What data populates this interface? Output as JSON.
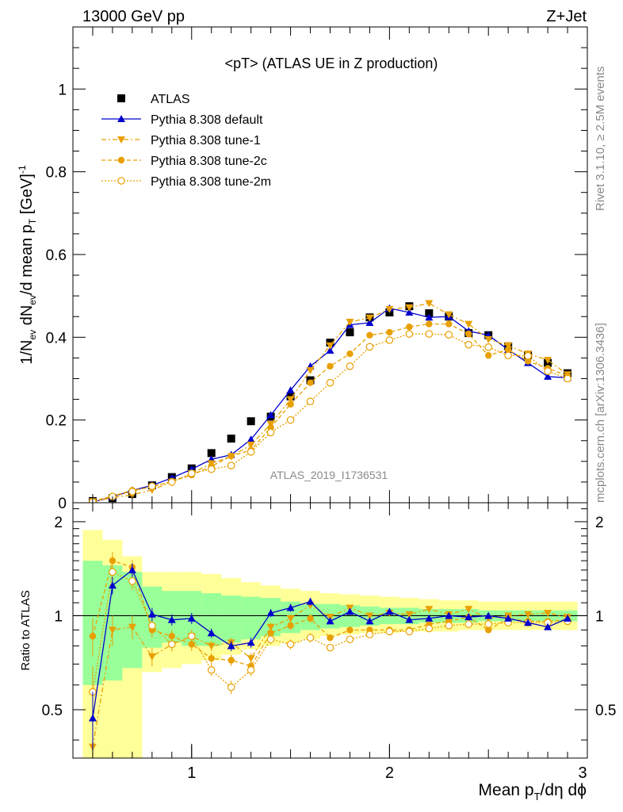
{
  "header": {
    "left": "13000 GeV pp",
    "right": "Z+Jet"
  },
  "side": {
    "rivet": "Rivet 3.1.10, ≥ 2.5M events",
    "mcplots": "mcplots.cern.ch [arXiv:1306.3436]"
  },
  "colors": {
    "data": "#000000",
    "default": "#0000cc",
    "tunes": "#e8a000",
    "band_inner": "#99ff99",
    "band_outer": "#ffff99"
  },
  "chart_data": [
    {
      "type": "line",
      "title": "<pT> (ATLAS UE in Z production)",
      "ylabel": "1/N_ev dN_ev/d mean p_T [GeV]^-1",
      "watermark": "ATLAS_2019_I1736531",
      "xlim": [
        0.4,
        3.0
      ],
      "ylim": [
        0,
        1.15
      ],
      "yticks": [
        "0",
        "0.2",
        "0.4",
        "0.6",
        "0.8",
        "1"
      ],
      "x": [
        0.5,
        0.6,
        0.7,
        0.8,
        0.9,
        1.0,
        1.1,
        1.2,
        1.3,
        1.4,
        1.5,
        1.6,
        1.7,
        1.8,
        1.9,
        2.0,
        2.1,
        2.2,
        2.3,
        2.4,
        2.5,
        2.6,
        2.7,
        2.8,
        2.9
      ],
      "series": [
        {
          "name": "ATLAS",
          "marker": "square",
          "values": [
            0.004,
            0.011,
            0.021,
            0.042,
            0.062,
            0.083,
            0.12,
            0.155,
            0.197,
            0.208,
            0.257,
            0.296,
            0.387,
            0.412,
            0.448,
            0.46,
            0.475,
            0.458,
            0.45,
            0.41,
            0.405,
            0.378,
            0.356,
            0.338,
            0.313
          ]
        },
        {
          "name": "Pythia 8.308 default",
          "marker": "triangle-up",
          "values": [
            0.002,
            0.014,
            0.03,
            0.042,
            0.06,
            0.081,
            0.105,
            0.116,
            0.153,
            0.212,
            0.272,
            0.33,
            0.368,
            0.43,
            0.435,
            0.47,
            0.46,
            0.448,
            0.45,
            0.415,
            0.405,
            0.37,
            0.338,
            0.305,
            0.302
          ]
        },
        {
          "name": "Pythia 8.308 tune-1",
          "marker": "triangle-down",
          "values": [
            0.003,
            0.012,
            0.019,
            0.031,
            0.05,
            0.071,
            0.095,
            0.112,
            0.14,
            0.19,
            0.25,
            0.32,
            0.38,
            0.437,
            0.447,
            0.468,
            0.472,
            0.482,
            0.455,
            0.432,
            0.395,
            0.38,
            0.36,
            0.345,
            0.31
          ]
        },
        {
          "name": "Pythia 8.308 tune-2c",
          "marker": "circle",
          "values": [
            0.0035,
            0.016,
            0.03,
            0.038,
            0.052,
            0.067,
            0.088,
            0.113,
            0.127,
            0.182,
            0.238,
            0.29,
            0.33,
            0.36,
            0.405,
            0.412,
            0.425,
            0.432,
            0.432,
            0.408,
            0.356,
            0.37,
            0.342,
            0.325,
            0.307
          ]
        },
        {
          "name": "Pythia 8.308 tune-2m",
          "marker": "circle-open",
          "values": [
            0.0023,
            0.015,
            0.027,
            0.04,
            0.05,
            0.071,
            0.081,
            0.09,
            0.123,
            0.17,
            0.2,
            0.245,
            0.29,
            0.33,
            0.377,
            0.393,
            0.408,
            0.408,
            0.406,
            0.382,
            0.376,
            0.356,
            0.355,
            0.318,
            0.3
          ]
        }
      ]
    },
    {
      "type": "line",
      "ylabel": "Ratio to ATLAS",
      "xlabel": "Mean p_T/dη dϕ",
      "xlim": [
        0.4,
        3.0
      ],
      "ylim": [
        0.35,
        2.3
      ],
      "yscale": "log",
      "xticks": [
        "1",
        "2",
        "3"
      ],
      "yticks": [
        "0.5",
        "1",
        "2"
      ],
      "x_edges": [
        0.45,
        0.55,
        0.65,
        0.75,
        0.85,
        0.95,
        1.05,
        1.15,
        1.25,
        1.35,
        1.45,
        1.55,
        1.65,
        1.75,
        1.85,
        1.95,
        2.05,
        2.15,
        2.25,
        2.35,
        2.45,
        2.55,
        2.65,
        2.75,
        2.85,
        2.95
      ],
      "band_inner": {
        "lo": [
          0.6,
          0.62,
          0.68,
          0.79,
          0.82,
          0.8,
          0.8,
          0.82,
          0.84,
          0.86,
          0.88,
          0.9,
          0.91,
          0.92,
          0.93,
          0.94,
          0.94,
          0.95,
          0.95,
          0.95,
          0.96,
          0.96,
          0.96,
          0.96,
          0.96
        ],
        "hi": [
          1.5,
          1.45,
          1.38,
          1.24,
          1.2,
          1.2,
          1.18,
          1.16,
          1.15,
          1.14,
          1.11,
          1.09,
          1.09,
          1.08,
          1.07,
          1.06,
          1.06,
          1.05,
          1.05,
          1.05,
          1.04,
          1.04,
          1.04,
          1.04,
          1.04
        ]
      },
      "band_outer": {
        "lo": [
          0.35,
          0.35,
          0.35,
          0.66,
          0.68,
          0.7,
          0.72,
          0.75,
          0.78,
          0.8,
          0.82,
          0.84,
          0.86,
          0.87,
          0.88,
          0.88,
          0.89,
          0.89,
          0.89,
          0.9,
          0.9,
          0.9,
          0.9,
          0.9,
          0.9
        ],
        "hi": [
          1.88,
          1.75,
          1.55,
          1.38,
          1.38,
          1.38,
          1.36,
          1.32,
          1.28,
          1.25,
          1.22,
          1.2,
          1.18,
          1.17,
          1.16,
          1.15,
          1.14,
          1.13,
          1.12,
          1.12,
          1.11,
          1.11,
          1.11,
          1.11,
          1.11
        ]
      },
      "series": [
        {
          "name": "Pythia 8.308 default",
          "values": [
            0.47,
            1.25,
            1.4,
            1.01,
            0.97,
            0.98,
            0.88,
            0.8,
            0.82,
            1.02,
            1.06,
            1.11,
            0.96,
            1.03,
            0.96,
            1.03,
            0.97,
            0.98,
            1.0,
            0.99,
            1.0,
            0.98,
            0.95,
            0.92,
            0.98
          ],
          "err": [
            0.1,
            0.08,
            0.07,
            0.05,
            0.04,
            0.04,
            0.03,
            0.03,
            0.03,
            0.03,
            0.03,
            0.03,
            0.02,
            0.02,
            0.02,
            0.02,
            0.02,
            0.02,
            0.02,
            0.02,
            0.02,
            0.02,
            0.02,
            0.02,
            0.02
          ]
        },
        {
          "name": "Pythia 8.308 tune-1",
          "values": [
            0.38,
            0.9,
            0.92,
            0.74,
            0.81,
            0.86,
            0.8,
            0.82,
            0.73,
            0.92,
            0.98,
            1.08,
            0.99,
            1.06,
            1.0,
            1.02,
            1.01,
            1.05,
            1.01,
            1.05,
            0.98,
            1.0,
            1.01,
            1.02,
            0.99
          ],
          "err": [
            0.12,
            0.1,
            0.08,
            0.05,
            0.04,
            0.04,
            0.03,
            0.03,
            0.03,
            0.03,
            0.03,
            0.03,
            0.02,
            0.02,
            0.02,
            0.02,
            0.02,
            0.02,
            0.02,
            0.02,
            0.02,
            0.02,
            0.02,
            0.02,
            0.02
          ]
        },
        {
          "name": "Pythia 8.308 tune-2c",
          "values": [
            0.86,
            1.5,
            1.43,
            0.9,
            0.86,
            0.81,
            0.73,
            0.72,
            0.69,
            0.88,
            0.93,
            0.98,
            0.85,
            0.9,
            0.9,
            0.9,
            0.9,
            0.94,
            0.96,
            0.99,
            0.9,
            0.98,
            0.96,
            0.96,
            0.97
          ],
          "err": [
            0.12,
            0.1,
            0.08,
            0.05,
            0.04,
            0.04,
            0.03,
            0.03,
            0.03,
            0.03,
            0.03,
            0.03,
            0.02,
            0.02,
            0.02,
            0.02,
            0.02,
            0.02,
            0.02,
            0.02,
            0.02,
            0.02,
            0.02,
            0.02,
            0.02
          ]
        },
        {
          "name": "Pythia 8.308 tune-2m",
          "values": [
            0.57,
            1.38,
            1.29,
            0.93,
            0.81,
            0.86,
            0.67,
            0.59,
            0.67,
            0.84,
            0.81,
            0.85,
            0.79,
            0.84,
            0.87,
            0.89,
            0.89,
            0.91,
            0.93,
            0.94,
            0.94,
            0.95,
            0.95,
            0.95,
            0.96
          ],
          "err": [
            0.12,
            0.1,
            0.08,
            0.05,
            0.04,
            0.04,
            0.03,
            0.03,
            0.03,
            0.03,
            0.03,
            0.03,
            0.02,
            0.02,
            0.02,
            0.02,
            0.02,
            0.02,
            0.02,
            0.02,
            0.02,
            0.02,
            0.02,
            0.02,
            0.02
          ]
        }
      ]
    }
  ]
}
